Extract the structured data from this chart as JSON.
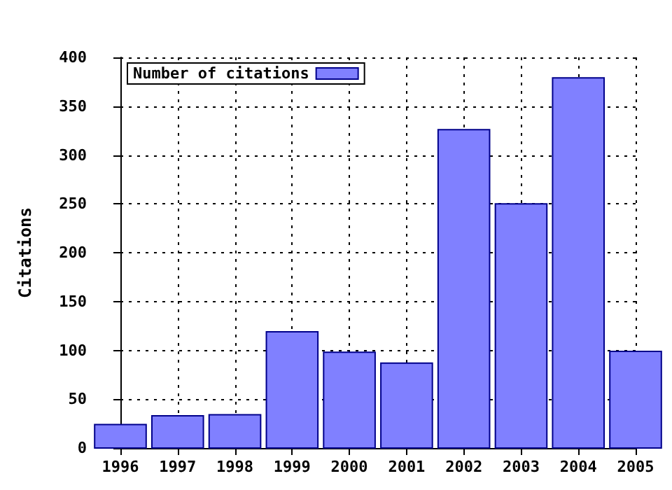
{
  "chart_data": {
    "type": "bar",
    "ylabel": "Citations",
    "x": [
      1996,
      1997,
      1998,
      1999,
      2000,
      2001,
      2002,
      2003,
      2004,
      2005
    ],
    "series": [
      {
        "name": "Number of citations",
        "color": "#8080ff",
        "values": [
          24,
          33,
          34,
          119,
          98,
          87,
          326,
          250,
          379,
          99
        ]
      }
    ],
    "xlim": [
      1996,
      2005
    ],
    "xticks": [
      1996,
      1997,
      1998,
      1999,
      2000,
      2001,
      2002,
      2003,
      2004,
      2005
    ],
    "ylim": [
      0,
      400
    ],
    "yticks": [
      0,
      50,
      100,
      150,
      200,
      250,
      300,
      350,
      400
    ],
    "grid": true,
    "legend": "top left"
  }
}
